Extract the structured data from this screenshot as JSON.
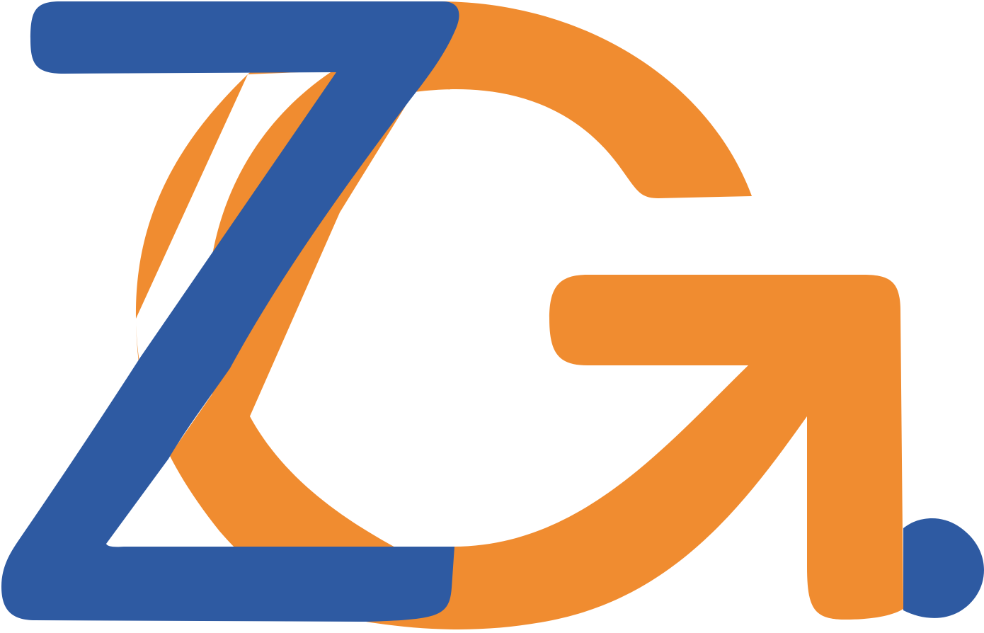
{
  "logo": {
    "name": "ZG logo",
    "colors": {
      "orange": "#F08C30",
      "blue": "#2E5AA2",
      "background": "#FFFFFF"
    }
  }
}
